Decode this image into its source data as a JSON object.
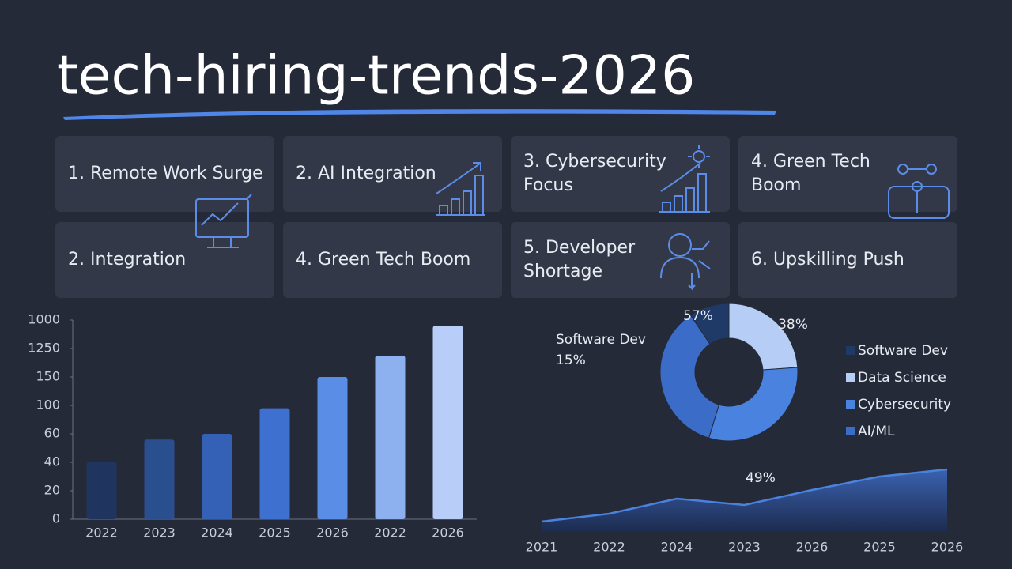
{
  "title": "tech-hiring-trends-2026",
  "cards": [
    {
      "lines": [
        "1. Remote Work Surge"
      ]
    },
    {
      "lines": [
        "2. AI Integration"
      ]
    },
    {
      "lines": [
        "3. Cybersecurity",
        "Focus"
      ]
    },
    {
      "lines": [
        "4. Green Tech",
        "Boom"
      ]
    },
    {
      "lines": [
        "2. Integration"
      ]
    },
    {
      "lines": [
        "4. Green Tech Boom"
      ]
    },
    {
      "lines": [
        "5. Developer",
        "Shortage"
      ]
    },
    {
      "lines": [
        "6. Upskilling Push"
      ]
    }
  ],
  "chart_data": [
    {
      "type": "bar",
      "categories": [
        "2022",
        "2023",
        "2024",
        "2025",
        "2026",
        "2022",
        "2026"
      ],
      "values": [
        2.0,
        2.8,
        3.0,
        3.9,
        5.0,
        5.75,
        6.8
      ],
      "colors": [
        "#1f3560",
        "#2a4f8f",
        "#3461b5",
        "#3d70cf",
        "#5a8ee6",
        "#8db0ef",
        "#b8cdf7"
      ],
      "ylim": [
        0,
        7
      ],
      "yticks": [
        {
          "value": 0,
          "label": "0"
        },
        {
          "value": 1,
          "label": "20"
        },
        {
          "value": 2,
          "label": "40"
        },
        {
          "value": 3,
          "label": "60"
        },
        {
          "value": 4,
          "label": "100"
        },
        {
          "value": 5,
          "label": "150"
        },
        {
          "value": 6,
          "label": "1250"
        },
        {
          "value": 7,
          "label": "1000"
        }
      ]
    },
    {
      "type": "pie",
      "categories": [
        "Software Dev",
        "Data Science",
        "Cybersecurity",
        "AI/ML"
      ],
      "values": [
        15,
        38,
        49,
        57
      ],
      "value_labels": [
        "15%",
        "38%",
        "49%",
        "57%"
      ],
      "colors": [
        "#1f3a66",
        "#b6cdf6",
        "#4a82e0",
        "#3a6cc8"
      ]
    },
    {
      "type": "area",
      "categories": [
        "2021",
        "2022",
        "2024",
        "2023",
        "2026",
        "2025",
        "2026"
      ],
      "values": [
        12,
        22,
        41,
        33,
        52,
        69,
        78
      ],
      "color": "#4a82e0"
    }
  ]
}
